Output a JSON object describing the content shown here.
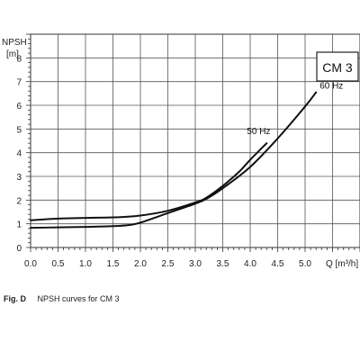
{
  "caption": {
    "figure": "Fig. D",
    "text": "NPSH curves for CM 3"
  },
  "chart_data": {
    "type": "line",
    "title": "",
    "ylabel": "NPSH",
    "yunit": "[m]",
    "xlabel": "Q [m³/h]",
    "xlim": [
      0,
      6.0
    ],
    "ylim": [
      0,
      9
    ],
    "xticks": [
      "0.0",
      "0.5",
      "1.0",
      "1.5",
      "2.0",
      "2.5",
      "3.0",
      "3.5",
      "4.0",
      "4.5",
      "5.0"
    ],
    "xtick_values": [
      0,
      0.5,
      1.0,
      1.5,
      2.0,
      2.5,
      3.0,
      3.5,
      4.0,
      4.5,
      5.0
    ],
    "yticks": [
      "0",
      "1",
      "2",
      "3",
      "4",
      "5",
      "6",
      "7",
      "8"
    ],
    "ytick_values": [
      0,
      1,
      2,
      3,
      4,
      5,
      6,
      7,
      8
    ],
    "grid": true,
    "model_box_label": "CM 3",
    "series": [
      {
        "name": "50 Hz",
        "x": [
          0.0,
          0.5,
          1.0,
          1.5,
          2.0,
          2.5,
          3.0,
          3.2,
          3.5,
          3.8,
          4.0,
          4.3
        ],
        "y": [
          1.15,
          1.22,
          1.25,
          1.27,
          1.35,
          1.55,
          1.9,
          2.1,
          2.6,
          3.2,
          3.7,
          4.4
        ]
      },
      {
        "name": "60 Hz",
        "x": [
          0.0,
          0.5,
          1.0,
          1.5,
          1.8,
          2.0,
          2.5,
          3.0,
          3.2,
          3.5,
          4.0,
          4.5,
          5.0,
          5.2
        ],
        "y": [
          0.83,
          0.85,
          0.87,
          0.9,
          0.95,
          1.05,
          1.45,
          1.85,
          2.05,
          2.5,
          3.4,
          4.6,
          5.95,
          6.55
        ]
      }
    ]
  }
}
